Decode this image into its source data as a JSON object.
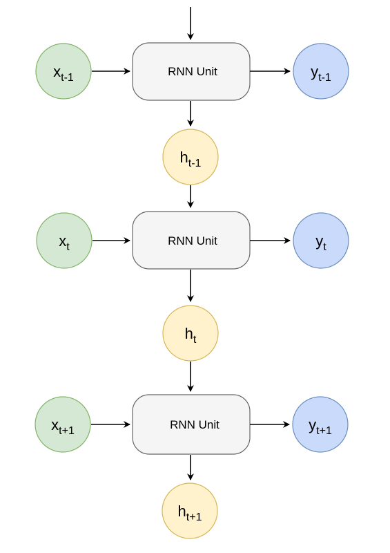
{
  "colors": {
    "input_fill": "#d5e8d4",
    "input_stroke": "#82b366",
    "hidden_fill": "#fff2cc",
    "hidden_stroke": "#d6b656",
    "output_fill": "#c9dafa",
    "output_stroke": "#6c8ebf",
    "unit_fill": "#f5f5f5",
    "unit_stroke": "#666666",
    "arrow": "#000000"
  },
  "steps": [
    {
      "unit_label": "RNN Unit",
      "input": {
        "base": "x",
        "sub": "t-1"
      },
      "output": {
        "base": "y",
        "sub": "t-1"
      },
      "hidden": {
        "base": "h",
        "sub": "t-1"
      }
    },
    {
      "unit_label": "RNN Unit",
      "input": {
        "base": "x",
        "sub": "t"
      },
      "output": {
        "base": "y",
        "sub": "t"
      },
      "hidden": {
        "base": "h",
        "sub": "t"
      }
    },
    {
      "unit_label": "RNN Unit",
      "input": {
        "base": "x",
        "sub": "t+1"
      },
      "output": {
        "base": "y",
        "sub": "t+1"
      },
      "hidden": {
        "base": "h",
        "sub": "t+1"
      }
    }
  ]
}
